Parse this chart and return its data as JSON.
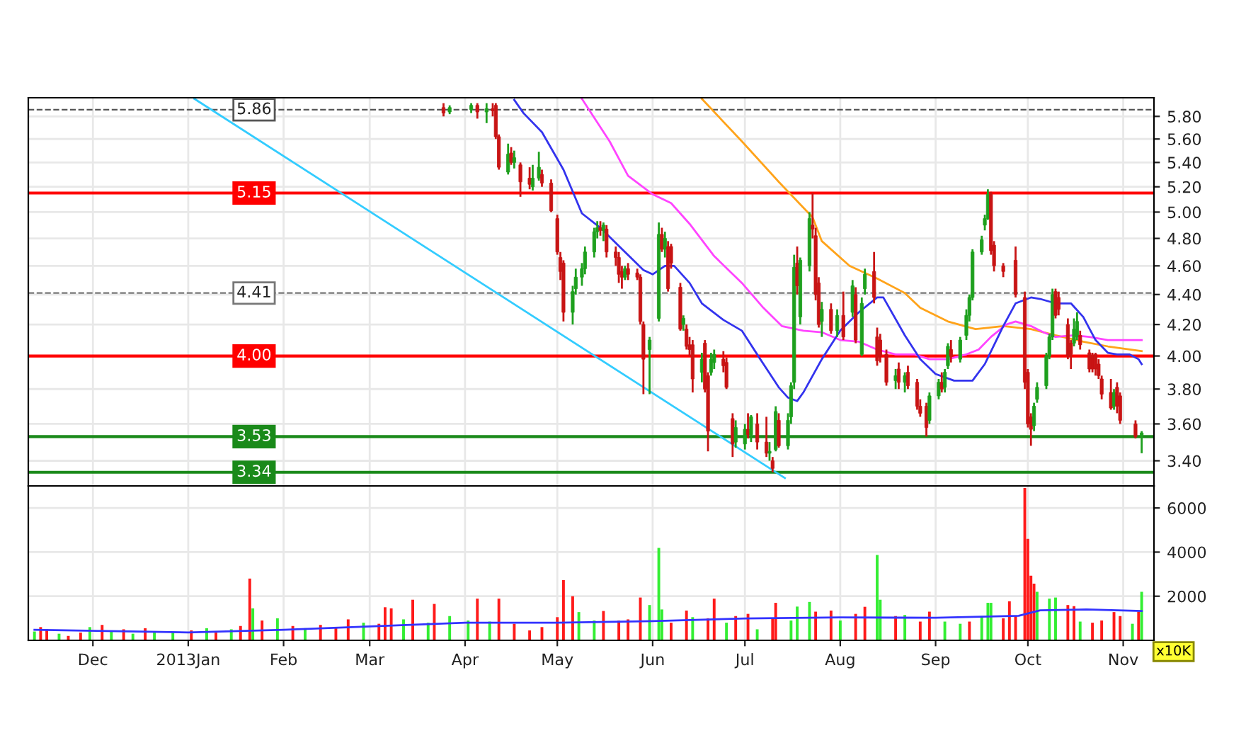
{
  "chart_data": [
    {
      "type": "candlestick",
      "log": true,
      "ylim": [
        3.27,
        5.97
      ],
      "grid": true,
      "tick_labels": "y",
      "yticks": [
        {
          "value": 3.4,
          "label": "3.40"
        },
        {
          "value": 3.6,
          "label": "3.60"
        },
        {
          "value": 3.8,
          "label": "3.80"
        },
        {
          "value": 4.0,
          "label": "4.00"
        },
        {
          "value": 4.2,
          "label": "4.20"
        },
        {
          "value": 4.4,
          "label": "4.40"
        },
        {
          "value": 4.6,
          "label": "4.60"
        },
        {
          "value": 4.8,
          "label": "4.80"
        },
        {
          "value": 5.0,
          "label": "5.00"
        },
        {
          "value": 5.2,
          "label": "5.20"
        },
        {
          "value": 5.4,
          "label": "5.40"
        },
        {
          "value": 5.6,
          "label": "5.60"
        },
        {
          "value": 5.8,
          "label": "5.80"
        }
      ],
      "xlim": [
        "2012-11-10",
        "2013-11-11"
      ],
      "xticks": [
        {
          "value": "2012-12-01",
          "label": null
        },
        {
          "value": "2013-01-01",
          "label": null
        },
        {
          "value": "2013-02-01",
          "label": null
        },
        {
          "value": "2013-03-01",
          "label": null
        },
        {
          "value": "2013-04-01",
          "label": null
        },
        {
          "value": "2013-05-01",
          "label": null
        },
        {
          "value": "2013-06-01",
          "label": null
        },
        {
          "value": "2013-07-01",
          "label": null
        },
        {
          "value": "2013-08-01",
          "label": null
        },
        {
          "value": "2013-09-01",
          "label": null
        },
        {
          "value": "2013-10-01",
          "label": null
        },
        {
          "value": "2013-11-01",
          "label": null
        }
      ],
      "x": [
        "2013-03-25",
        "2013-03-27",
        "2013-04-03",
        "2013-04-05",
        "2013-04-08",
        "2013-04-10",
        "2013-04-11",
        "2013-04-12",
        "2013-04-15",
        "2013-04-16",
        "2013-04-17",
        "2013-04-19",
        "2013-04-22",
        "2013-04-23",
        "2013-04-25",
        "2013-04-26",
        "2013-04-29",
        "2013-05-01",
        "2013-05-02",
        "2013-05-03",
        "2013-05-06",
        "2013-05-07",
        "2013-05-09",
        "2013-05-10",
        "2013-05-13",
        "2013-05-14",
        "2013-05-15",
        "2013-05-16",
        "2013-05-17",
        "2013-05-20",
        "2013-05-21",
        "2013-05-22",
        "2013-05-23",
        "2013-05-24",
        "2013-05-27",
        "2013-05-28",
        "2013-05-29",
        "2013-05-31",
        "2013-06-03",
        "2013-06-04",
        "2013-06-05",
        "2013-06-06",
        "2013-06-07",
        "2013-06-10",
        "2013-06-11",
        "2013-06-12",
        "2013-06-13",
        "2013-06-14",
        "2013-06-17",
        "2013-06-18",
        "2013-06-19",
        "2013-06-20",
        "2013-06-21",
        "2013-06-24",
        "2013-06-25",
        "2013-06-27",
        "2013-06-28",
        "2013-07-01",
        "2013-07-02",
        "2013-07-03",
        "2013-07-05",
        "2013-07-08",
        "2013-07-09",
        "2013-07-10",
        "2013-07-11",
        "2013-07-12",
        "2013-07-15",
        "2013-07-16",
        "2013-07-17",
        "2013-07-18",
        "2013-07-19",
        "2013-07-22",
        "2013-07-23",
        "2013-07-24",
        "2013-07-25",
        "2013-07-26",
        "2013-07-29",
        "2013-07-31",
        "2013-08-02",
        "2013-08-05",
        "2013-08-06",
        "2013-08-08",
        "2013-08-09",
        "2013-08-12",
        "2013-08-13",
        "2013-08-14",
        "2013-08-16",
        "2013-08-19",
        "2013-08-20",
        "2013-08-22",
        "2013-08-23",
        "2013-08-26",
        "2013-08-27",
        "2013-08-29",
        "2013-08-30",
        "2013-09-02",
        "2013-09-03",
        "2013-09-04",
        "2013-09-05",
        "2013-09-06",
        "2013-09-09",
        "2013-09-11",
        "2013-09-12",
        "2013-09-13",
        "2013-09-16",
        "2013-09-17",
        "2013-09-18",
        "2013-09-19",
        "2013-09-20",
        "2013-09-23",
        "2013-09-27",
        "2013-09-30",
        "2013-10-01",
        "2013-10-02",
        "2013-10-03",
        "2013-10-04",
        "2013-10-07",
        "2013-10-08",
        "2013-10-09",
        "2013-10-10",
        "2013-10-11",
        "2013-10-14",
        "2013-10-15",
        "2013-10-16",
        "2013-10-17",
        "2013-10-18",
        "2013-10-21",
        "2013-10-22",
        "2013-10-23",
        "2013-10-24",
        "2013-10-25",
        "2013-10-28",
        "2013-10-29",
        "2013-10-30",
        "2013-10-31",
        "2013-11-05",
        "2013-11-07"
      ],
      "ohlc": [
        [
          5.88,
          5.92,
          5.8,
          5.83
        ],
        [
          5.84,
          5.9,
          5.82,
          5.88
        ],
        [
          5.86,
          5.92,
          5.83,
          5.9
        ],
        [
          5.9,
          5.92,
          5.78,
          5.84
        ],
        [
          5.84,
          5.92,
          5.74,
          5.87
        ],
        [
          5.87,
          5.92,
          5.8,
          5.85
        ],
        [
          5.9,
          5.92,
          5.6,
          5.62
        ],
        [
          5.62,
          5.64,
          5.34,
          5.36
        ],
        [
          5.32,
          5.56,
          5.3,
          5.47
        ],
        [
          5.48,
          5.53,
          5.38,
          5.4
        ],
        [
          5.4,
          5.5,
          5.35,
          5.44
        ],
        [
          5.38,
          5.4,
          5.12,
          5.24
        ],
        [
          5.27,
          5.36,
          5.18,
          5.22
        ],
        [
          5.2,
          5.38,
          5.17,
          5.27
        ],
        [
          5.27,
          5.49,
          5.25,
          5.36
        ],
        [
          5.3,
          5.34,
          5.2,
          5.23
        ],
        [
          5.23,
          5.26,
          5.0,
          5.01
        ],
        [
          4.95,
          4.98,
          4.68,
          4.7
        ],
        [
          4.66,
          4.7,
          4.5,
          4.56
        ],
        [
          4.62,
          4.64,
          4.22,
          4.28
        ],
        [
          4.28,
          4.46,
          4.2,
          4.42
        ],
        [
          4.44,
          4.58,
          4.4,
          4.52
        ],
        [
          4.52,
          4.62,
          4.46,
          4.58
        ],
        [
          4.58,
          4.74,
          4.54,
          4.7
        ],
        [
          4.7,
          4.88,
          4.66,
          4.85
        ],
        [
          4.85,
          4.93,
          4.8,
          4.88
        ],
        [
          4.88,
          4.93,
          4.82,
          4.86
        ],
        [
          4.86,
          4.92,
          4.78,
          4.9
        ],
        [
          4.87,
          4.9,
          4.66,
          4.7
        ],
        [
          4.7,
          4.74,
          4.6,
          4.66
        ],
        [
          4.66,
          4.7,
          4.48,
          4.54
        ],
        [
          4.56,
          4.6,
          4.44,
          4.52
        ],
        [
          4.52,
          4.6,
          4.5,
          4.58
        ],
        [
          4.58,
          4.62,
          4.5,
          4.54
        ],
        [
          4.55,
          4.58,
          4.5,
          4.52
        ],
        [
          4.52,
          4.54,
          4.2,
          4.22
        ],
        [
          4.2,
          4.22,
          3.77,
          3.98
        ],
        [
          4.04,
          4.12,
          3.77,
          4.1
        ],
        [
          4.24,
          4.92,
          4.22,
          4.83
        ],
        [
          4.83,
          4.88,
          4.7,
          4.72
        ],
        [
          4.72,
          4.85,
          4.66,
          4.8
        ],
        [
          4.74,
          4.78,
          4.42,
          4.44
        ],
        [
          4.74,
          4.76,
          4.58,
          4.62
        ],
        [
          4.45,
          4.48,
          4.16,
          4.17
        ],
        [
          4.2,
          4.26,
          4.16,
          4.24
        ],
        [
          4.17,
          4.2,
          4.04,
          4.06
        ],
        [
          4.07,
          4.12,
          4.0,
          4.04
        ],
        [
          4.07,
          4.1,
          3.78,
          3.86
        ],
        [
          3.9,
          4.02,
          3.84,
          3.98
        ],
        [
          4.08,
          4.1,
          3.78,
          3.8
        ],
        [
          3.88,
          3.9,
          3.45,
          3.56
        ],
        [
          3.9,
          4.02,
          3.88,
          3.98
        ],
        [
          3.96,
          4.04,
          3.92,
          4.01
        ],
        [
          3.98,
          4.03,
          3.9,
          3.94
        ],
        [
          3.96,
          3.99,
          3.8,
          3.81
        ],
        [
          3.63,
          3.66,
          3.42,
          3.49
        ],
        [
          3.5,
          3.62,
          3.47,
          3.58
        ],
        [
          3.49,
          3.6,
          3.46,
          3.57
        ],
        [
          3.57,
          3.66,
          3.52,
          3.54
        ],
        [
          3.54,
          3.65,
          3.5,
          3.64
        ],
        [
          3.6,
          3.66,
          3.46,
          3.5
        ],
        [
          3.5,
          3.64,
          3.42,
          3.44
        ],
        [
          3.44,
          3.5,
          3.4,
          3.45
        ],
        [
          3.4,
          3.42,
          3.34,
          3.36
        ],
        [
          3.46,
          3.7,
          3.45,
          3.67
        ],
        [
          3.62,
          3.66,
          3.47,
          3.48
        ],
        [
          3.48,
          3.66,
          3.46,
          3.62
        ],
        [
          3.64,
          3.84,
          3.6,
          3.82
        ],
        [
          3.84,
          4.68,
          3.8,
          4.59
        ],
        [
          4.62,
          4.74,
          4.4,
          4.46
        ],
        [
          4.25,
          4.66,
          4.2,
          4.64
        ],
        [
          4.6,
          5.0,
          4.56,
          4.95
        ],
        [
          4.9,
          5.15,
          4.8,
          4.87
        ],
        [
          4.82,
          4.88,
          4.36,
          4.4
        ],
        [
          4.48,
          4.52,
          4.18,
          4.2
        ],
        [
          4.22,
          4.35,
          4.12,
          4.3
        ],
        [
          4.3,
          4.34,
          4.14,
          4.16
        ],
        [
          4.16,
          4.3,
          4.12,
          4.26
        ],
        [
          4.26,
          4.42,
          4.1,
          4.12
        ],
        [
          4.28,
          4.5,
          4.25,
          4.46
        ],
        [
          4.4,
          4.45,
          4.08,
          4.1
        ],
        [
          4.01,
          4.38,
          4.0,
          4.34
        ],
        [
          4.44,
          4.58,
          4.4,
          4.54
        ],
        [
          4.56,
          4.7,
          4.34,
          4.38
        ],
        [
          4.12,
          4.18,
          3.94,
          3.97
        ],
        [
          4.1,
          4.14,
          3.96,
          4.0
        ],
        [
          4.01,
          4.04,
          3.82,
          3.84
        ],
        [
          3.85,
          3.92,
          3.8,
          3.88
        ],
        [
          3.92,
          3.96,
          3.8,
          3.84
        ],
        [
          3.84,
          3.9,
          3.78,
          3.88
        ],
        [
          3.9,
          3.94,
          3.8,
          3.82
        ],
        [
          3.84,
          3.86,
          3.68,
          3.7
        ],
        [
          3.7,
          3.74,
          3.64,
          3.66
        ],
        [
          3.7,
          3.72,
          3.53,
          3.58
        ],
        [
          3.62,
          3.78,
          3.6,
          3.76
        ],
        [
          3.76,
          3.86,
          3.74,
          3.84
        ],
        [
          3.84,
          3.9,
          3.78,
          3.8
        ],
        [
          3.81,
          3.92,
          3.78,
          3.9
        ],
        [
          3.94,
          4.08,
          3.92,
          4.06
        ],
        [
          4.04,
          4.1,
          3.96,
          4.0
        ],
        [
          3.98,
          4.12,
          3.96,
          4.1
        ],
        [
          4.13,
          4.3,
          4.1,
          4.26
        ],
        [
          4.26,
          4.4,
          4.22,
          4.38
        ],
        [
          4.38,
          4.72,
          4.36,
          4.7
        ],
        [
          4.7,
          4.82,
          4.68,
          4.79
        ],
        [
          4.9,
          4.98,
          4.86,
          4.95
        ],
        [
          4.95,
          5.18,
          4.94,
          5.14
        ],
        [
          5.14,
          5.16,
          4.68,
          4.71
        ],
        [
          4.75,
          4.78,
          4.56,
          4.6
        ],
        [
          4.6,
          4.62,
          4.52,
          4.56
        ],
        [
          4.64,
          4.74,
          4.38,
          4.4
        ],
        [
          4.38,
          4.42,
          3.8,
          3.84
        ],
        [
          3.9,
          3.92,
          3.58,
          3.6
        ],
        [
          3.64,
          3.66,
          3.48,
          3.57
        ],
        [
          3.59,
          3.72,
          3.56,
          3.7
        ],
        [
          3.74,
          3.84,
          3.72,
          3.81
        ],
        [
          3.82,
          4.02,
          3.8,
          4.0
        ],
        [
          4.0,
          4.14,
          3.98,
          4.12
        ],
        [
          4.12,
          4.44,
          4.1,
          4.4
        ],
        [
          4.42,
          4.44,
          4.24,
          4.26
        ],
        [
          4.38,
          4.42,
          4.26,
          4.3
        ],
        [
          4.2,
          4.24,
          3.98,
          4.0
        ],
        [
          4.08,
          4.1,
          3.92,
          4.01
        ],
        [
          4.08,
          4.24,
          4.06,
          4.17
        ],
        [
          4.12,
          4.28,
          4.1,
          4.22
        ],
        [
          4.13,
          4.16,
          4.04,
          4.07
        ],
        [
          4.02,
          4.04,
          3.9,
          3.92
        ],
        [
          4.0,
          4.02,
          3.9,
          3.92
        ],
        [
          4.01,
          4.02,
          3.88,
          3.92
        ],
        [
          3.95,
          3.98,
          3.86,
          3.88
        ],
        [
          3.86,
          3.88,
          3.74,
          3.77
        ],
        [
          3.78,
          3.86,
          3.68,
          3.69
        ],
        [
          3.7,
          3.8,
          3.68,
          3.78
        ],
        [
          3.81,
          3.84,
          3.66,
          3.7
        ],
        [
          3.76,
          3.78,
          3.6,
          3.62
        ],
        [
          3.6,
          3.62,
          3.52,
          3.53
        ],
        [
          3.53,
          3.56,
          3.44,
          3.55
        ]
      ],
      "colors": [
        "#c81414",
        "#1ea01e",
        "#1ea01e",
        "#c81414",
        "#1ea01e",
        "#c81414",
        "#c81414",
        "#c81414",
        "#1ea01e",
        "#c81414",
        "#1ea01e",
        "#c81414",
        "#c81414",
        "#1ea01e",
        "#1ea01e",
        "#c81414",
        "#c81414",
        "#c81414",
        "#c81414",
        "#c81414",
        "#1ea01e",
        "#1ea01e",
        "#1ea01e",
        "#1ea01e",
        "#1ea01e",
        "#1ea01e",
        "#c81414",
        "#1ea01e",
        "#c81414",
        "#c81414",
        "#c81414",
        "#c81414",
        "#1ea01e",
        "#c81414",
        "#c81414",
        "#c81414",
        "#c81414",
        "#1ea01e",
        "#1ea01e",
        "#c81414",
        "#1ea01e",
        "#c81414",
        "#c81414",
        "#c81414",
        "#1ea01e",
        "#c81414",
        "#c81414",
        "#c81414",
        "#1ea01e",
        "#c81414",
        "#c81414",
        "#1ea01e",
        "#1ea01e",
        "#c81414",
        "#c81414",
        "#c81414",
        "#1ea01e",
        "#1ea01e",
        "#c81414",
        "#1ea01e",
        "#c81414",
        "#c81414",
        "#1ea01e",
        "#c81414",
        "#1ea01e",
        "#c81414",
        "#1ea01e",
        "#1ea01e",
        "#1ea01e",
        "#c81414",
        "#1ea01e",
        "#1ea01e",
        "#c81414",
        "#c81414",
        "#c81414",
        "#1ea01e",
        "#c81414",
        "#1ea01e",
        "#c81414",
        "#1ea01e",
        "#c81414",
        "#1ea01e",
        "#1ea01e",
        "#c81414",
        "#c81414",
        "#c81414",
        "#c81414",
        "#1ea01e",
        "#c81414",
        "#1ea01e",
        "#c81414",
        "#c81414",
        "#c81414",
        "#c81414",
        "#1ea01e",
        "#1ea01e",
        "#c81414",
        "#1ea01e",
        "#1ea01e",
        "#c81414",
        "#1ea01e",
        "#1ea01e",
        "#1ea01e",
        "#1ea01e",
        "#1ea01e",
        "#1ea01e",
        "#1ea01e",
        "#c81414",
        "#c81414",
        "#c81414",
        "#c81414",
        "#c81414",
        "#c81414",
        "#c81414",
        "#1ea01e",
        "#1ea01e",
        "#1ea01e",
        "#1ea01e",
        "#1ea01e",
        "#c81414",
        "#c81414",
        "#c81414",
        "#c81414",
        "#1ea01e",
        "#1ea01e",
        "#c81414",
        "#c81414",
        "#c81414",
        "#c81414",
        "#c81414",
        "#c81414",
        "#c81414",
        "#1ea01e",
        "#c81414",
        "#c81414",
        "#c81414",
        "#1ea01e"
      ],
      "series": [
        {
          "type": "line",
          "color": "#33ccff",
          "x": [
            "2013-01-03",
            "2013-07-14"
          ],
          "values": [
            5.96,
            3.31
          ]
        },
        {
          "type": "line",
          "color": "#ffa31a",
          "x": [
            "2013-06-17",
            "2013-06-30",
            "2013-07-12",
            "2013-07-23",
            "2013-07-26",
            "2013-08-04",
            "2013-08-13",
            "2013-08-22",
            "2013-08-27",
            "2013-09-05",
            "2013-09-14",
            "2013-09-23",
            "2013-10-02",
            "2013-10-10",
            "2013-10-19",
            "2013-10-27",
            "2013-11-07"
          ],
          "values": [
            5.96,
            5.58,
            5.24,
            4.96,
            4.78,
            4.6,
            4.51,
            4.41,
            4.31,
            4.22,
            4.17,
            4.19,
            4.17,
            4.13,
            4.09,
            4.06,
            4.03
          ]
        },
        {
          "type": "line",
          "color": "#ff44ff",
          "x": [
            "2013-05-09",
            "2013-05-18",
            "2013-05-24",
            "2013-06-01",
            "2013-06-07",
            "2013-06-13",
            "2013-06-21",
            "2013-06-30",
            "2013-07-07",
            "2013-07-13",
            "2013-07-20",
            "2013-07-26",
            "2013-08-01",
            "2013-08-07",
            "2013-08-13",
            "2013-08-19",
            "2013-08-25",
            "2013-08-30",
            "2013-09-05",
            "2013-09-11",
            "2013-09-15",
            "2013-09-19",
            "2013-09-24",
            "2013-09-27",
            "2013-10-02",
            "2013-10-06",
            "2013-10-10",
            "2013-10-16",
            "2013-10-21",
            "2013-10-27",
            "2013-11-01",
            "2013-11-07"
          ],
          "values": [
            5.96,
            5.58,
            5.29,
            5.14,
            5.07,
            4.91,
            4.67,
            4.48,
            4.31,
            4.19,
            4.16,
            4.15,
            4.1,
            4.09,
            4.04,
            4.01,
            4.01,
            3.98,
            3.98,
            4.01,
            4.04,
            4.12,
            4.2,
            4.22,
            4.19,
            4.15,
            4.12,
            4.13,
            4.12,
            4.1,
            4.1,
            4.1
          ]
        },
        {
          "type": "line",
          "color": "#3333ee",
          "x": [
            "2013-04-17",
            "2013-04-20",
            "2013-04-26",
            "2013-05-03",
            "2013-05-09",
            "2013-05-15",
            "2013-05-23",
            "2013-05-29",
            "2013-06-01",
            "2013-06-05",
            "2013-06-08",
            "2013-06-13",
            "2013-06-17",
            "2013-06-24",
            "2013-06-30",
            "2013-07-06",
            "2013-07-12",
            "2013-07-15",
            "2013-07-18",
            "2013-07-20",
            "2013-07-26",
            "2013-08-01",
            "2013-08-07",
            "2013-08-13",
            "2013-08-15",
            "2013-08-22",
            "2013-08-27",
            "2013-09-01",
            "2013-09-07",
            "2013-09-13",
            "2013-09-17",
            "2013-09-23",
            "2013-09-27",
            "2013-10-02",
            "2013-10-05",
            "2013-10-10",
            "2013-10-15",
            "2013-10-19",
            "2013-10-23",
            "2013-10-27",
            "2013-10-30",
            "2013-11-03",
            "2013-11-06",
            "2013-11-07"
          ],
          "values": [
            5.95,
            5.83,
            5.66,
            5.34,
            4.99,
            4.88,
            4.7,
            4.57,
            4.54,
            4.6,
            4.6,
            4.48,
            4.34,
            4.23,
            4.16,
            3.98,
            3.81,
            3.75,
            3.73,
            3.78,
            3.98,
            4.16,
            4.28,
            4.38,
            4.38,
            4.13,
            3.98,
            3.89,
            3.85,
            3.85,
            3.95,
            4.19,
            4.34,
            4.38,
            4.37,
            4.34,
            4.34,
            4.25,
            4.1,
            4.02,
            4.01,
            4.01,
            3.98,
            3.95
          ]
        }
      ],
      "ref_lines": [
        {
          "axis": "y",
          "value": 5.86,
          "label": "5.86",
          "color": "#555555",
          "line_style": "dashed"
        },
        {
          "axis": "y",
          "value": 5.15,
          "label": "5.15",
          "color": "#ff0000",
          "line_style": "solid"
        },
        {
          "axis": "y",
          "value": 4.41,
          "label": "4.41",
          "color": "#777777",
          "line_style": "dashed"
        },
        {
          "axis": "y",
          "value": 4.0,
          "label": "4.00",
          "color": "#ff0000",
          "line_style": "solid"
        },
        {
          "axis": "y",
          "value": 3.53,
          "label": "3.53",
          "color": "#1a8a1a",
          "line_style": "solid"
        },
        {
          "axis": "y",
          "value": 3.34,
          "label": "3.34",
          "color": "#1a8a1a",
          "line_style": "solid"
        }
      ]
    },
    {
      "type": "bar",
      "ylim": [
        0,
        7000
      ],
      "yticks": [
        2000,
        4000,
        6000
      ],
      "grid": true,
      "annotations": [
        "x10K"
      ],
      "xlim": [
        "2012-11-10",
        "2013-11-11"
      ],
      "xticks": [
        {
          "value": "2012-12-01",
          "label": "Dec"
        },
        {
          "value": "2013-01-01",
          "label": "2013Jan"
        },
        {
          "value": "2013-02-01",
          "label": "Feb"
        },
        {
          "value": "2013-03-01",
          "label": "Mar"
        },
        {
          "value": "2013-04-01",
          "label": "Apr"
        },
        {
          "value": "2013-05-01",
          "label": "May"
        },
        {
          "value": "2013-06-01",
          "label": "Jun"
        },
        {
          "value": "2013-07-01",
          "label": "Jul"
        },
        {
          "value": "2013-08-01",
          "label": "Aug"
        },
        {
          "value": "2013-09-01",
          "label": "Sep"
        },
        {
          "value": "2013-10-01",
          "label": "Oct"
        },
        {
          "value": "2013-11-01",
          "label": "Nov"
        }
      ],
      "series": [
        {
          "type": "bar",
          "x": [
            "2012-11-12",
            "2012-11-14",
            "2012-11-16",
            "2012-11-20",
            "2012-11-23",
            "2012-11-27",
            "2012-11-30",
            "2012-12-04",
            "2012-12-07",
            "2012-12-11",
            "2012-12-14",
            "2012-12-18",
            "2012-12-21",
            "2012-12-27",
            "2013-01-02",
            "2013-01-07",
            "2013-01-10",
            "2013-01-15",
            "2013-01-18",
            "2013-01-21",
            "2013-01-22",
            "2013-01-25",
            "2013-01-30",
            "2013-02-04",
            "2013-02-08",
            "2013-02-13",
            "2013-02-18",
            "2013-02-22",
            "2013-02-27",
            "2013-03-04",
            "2013-03-06",
            "2013-03-08",
            "2013-03-12",
            "2013-03-15",
            "2013-03-20",
            "2013-03-22",
            "2013-03-27",
            "2013-04-02",
            "2013-04-05",
            "2013-04-09",
            "2013-04-12",
            "2013-04-17",
            "2013-04-22",
            "2013-04-26",
            "2013-05-01",
            "2013-05-03",
            "2013-05-06",
            "2013-05-08",
            "2013-05-13",
            "2013-05-16",
            "2013-05-21",
            "2013-05-24",
            "2013-05-28",
            "2013-05-31",
            "2013-06-03",
            "2013-06-04",
            "2013-06-07",
            "2013-06-12",
            "2013-06-14",
            "2013-06-19",
            "2013-06-21",
            "2013-06-25",
            "2013-06-28",
            "2013-07-02",
            "2013-07-05",
            "2013-07-10",
            "2013-07-11",
            "2013-07-16",
            "2013-07-18",
            "2013-07-22",
            "2013-07-24",
            "2013-07-29",
            "2013-08-01",
            "2013-08-06",
            "2013-08-09",
            "2013-08-13",
            "2013-08-14",
            "2013-08-19",
            "2013-08-22",
            "2013-08-27",
            "2013-08-30",
            "2013-09-04",
            "2013-09-09",
            "2013-09-12",
            "2013-09-16",
            "2013-09-18",
            "2013-09-19",
            "2013-09-23",
            "2013-09-25",
            "2013-09-27",
            "2013-09-30",
            "2013-10-01",
            "2013-10-02",
            "2013-10-03",
            "2013-10-04",
            "2013-10-08",
            "2013-10-10",
            "2013-10-14",
            "2013-10-16",
            "2013-10-18",
            "2013-10-22",
            "2013-10-25",
            "2013-10-29",
            "2013-10-31",
            "2013-11-04",
            "2013-11-06",
            "2013-11-07"
          ],
          "values": [
            400,
            600,
            500,
            300,
            200,
            350,
            600,
            700,
            450,
            500,
            300,
            550,
            400,
            350,
            450,
            550,
            350,
            500,
            650,
            2800,
            1450,
            900,
            1000,
            650,
            550,
            700,
            600,
            950,
            800,
            750,
            1500,
            1450,
            950,
            1840,
            800,
            1650,
            1100,
            900,
            1890,
            850,
            1890,
            750,
            450,
            600,
            1050,
            2730,
            2000,
            1280,
            900,
            1330,
            900,
            950,
            1940,
            1600,
            4190,
            1400,
            800,
            1350,
            1050,
            1000,
            1890,
            800,
            1100,
            1200,
            500,
            1000,
            1700,
            900,
            1530,
            1740,
            1300,
            1350,
            900,
            1200,
            1520,
            3870,
            1840,
            1100,
            1150,
            850,
            1300,
            850,
            750,
            850,
            1100,
            1700,
            1700,
            1000,
            1770,
            1100,
            6900,
            4600,
            2930,
            2570,
            2200,
            1890,
            1940,
            1600,
            1550,
            850,
            800,
            900,
            1280,
            1100,
            750,
            1300,
            2200
          ],
          "colors": [
            "#33ee33",
            "#ff1a1a",
            "#ff1a1a",
            "#33ee33",
            "#ff1a1a",
            "#ff1a1a",
            "#33ee33",
            "#ff1a1a",
            "#33ee33",
            "#ff1a1a",
            "#33ee33",
            "#ff1a1a",
            "#33ee33",
            "#33ee33",
            "#ff1a1a",
            "#33ee33",
            "#ff1a1a",
            "#33ee33",
            "#ff1a1a",
            "#ff1a1a",
            "#33ee33",
            "#ff1a1a",
            "#33ee33",
            "#ff1a1a",
            "#33ee33",
            "#ff1a1a",
            "#ff1a1a",
            "#ff1a1a",
            "#33ee33",
            "#ff1a1a",
            "#ff1a1a",
            "#ff1a1a",
            "#33ee33",
            "#ff1a1a",
            "#33ee33",
            "#ff1a1a",
            "#33ee33",
            "#33ee33",
            "#ff1a1a",
            "#33ee33",
            "#ff1a1a",
            "#ff1a1a",
            "#ff1a1a",
            "#ff1a1a",
            "#ff1a1a",
            "#ff1a1a",
            "#ff1a1a",
            "#33ee33",
            "#33ee33",
            "#ff1a1a",
            "#ff1a1a",
            "#ff1a1a",
            "#ff1a1a",
            "#33ee33",
            "#33ee33",
            "#33ee33",
            "#ff1a1a",
            "#ff1a1a",
            "#33ee33",
            "#ff1a1a",
            "#ff1a1a",
            "#33ee33",
            "#ff1a1a",
            "#ff1a1a",
            "#33ee33",
            "#ff1a1a",
            "#ff1a1a",
            "#33ee33",
            "#33ee33",
            "#33ee33",
            "#ff1a1a",
            "#ff1a1a",
            "#33ee33",
            "#ff1a1a",
            "#ff1a1a",
            "#33ee33",
            "#33ee33",
            "#ff1a1a",
            "#33ee33",
            "#ff1a1a",
            "#ff1a1a",
            "#33ee33",
            "#33ee33",
            "#ff1a1a",
            "#33ee33",
            "#33ee33",
            "#33ee33",
            "#ff1a1a",
            "#ff1a1a",
            "#ff1a1a",
            "#ff1a1a",
            "#ff1a1a",
            "#ff1a1a",
            "#ff1a1a",
            "#33ee33",
            "#33ee33",
            "#33ee33",
            "#ff1a1a",
            "#ff1a1a",
            "#33ee33",
            "#ff1a1a",
            "#ff1a1a",
            "#ff1a1a",
            "#ff1a1a",
            "#33ee33",
            "#ff1a1a",
            "#33ee33"
          ]
        },
        {
          "type": "line",
          "color": "#3333ff",
          "x": [
            "2012-11-12",
            "2013-01-01",
            "2013-02-01",
            "2013-03-01",
            "2013-04-01",
            "2013-05-01",
            "2013-06-01",
            "2013-07-01",
            "2013-08-01",
            "2013-09-01",
            "2013-09-28",
            "2013-10-05",
            "2013-10-20",
            "2013-11-07"
          ],
          "values": [
            480,
            360,
            480,
            630,
            800,
            800,
            870,
            990,
            1040,
            1020,
            1110,
            1360,
            1400,
            1330
          ]
        }
      ]
    }
  ]
}
